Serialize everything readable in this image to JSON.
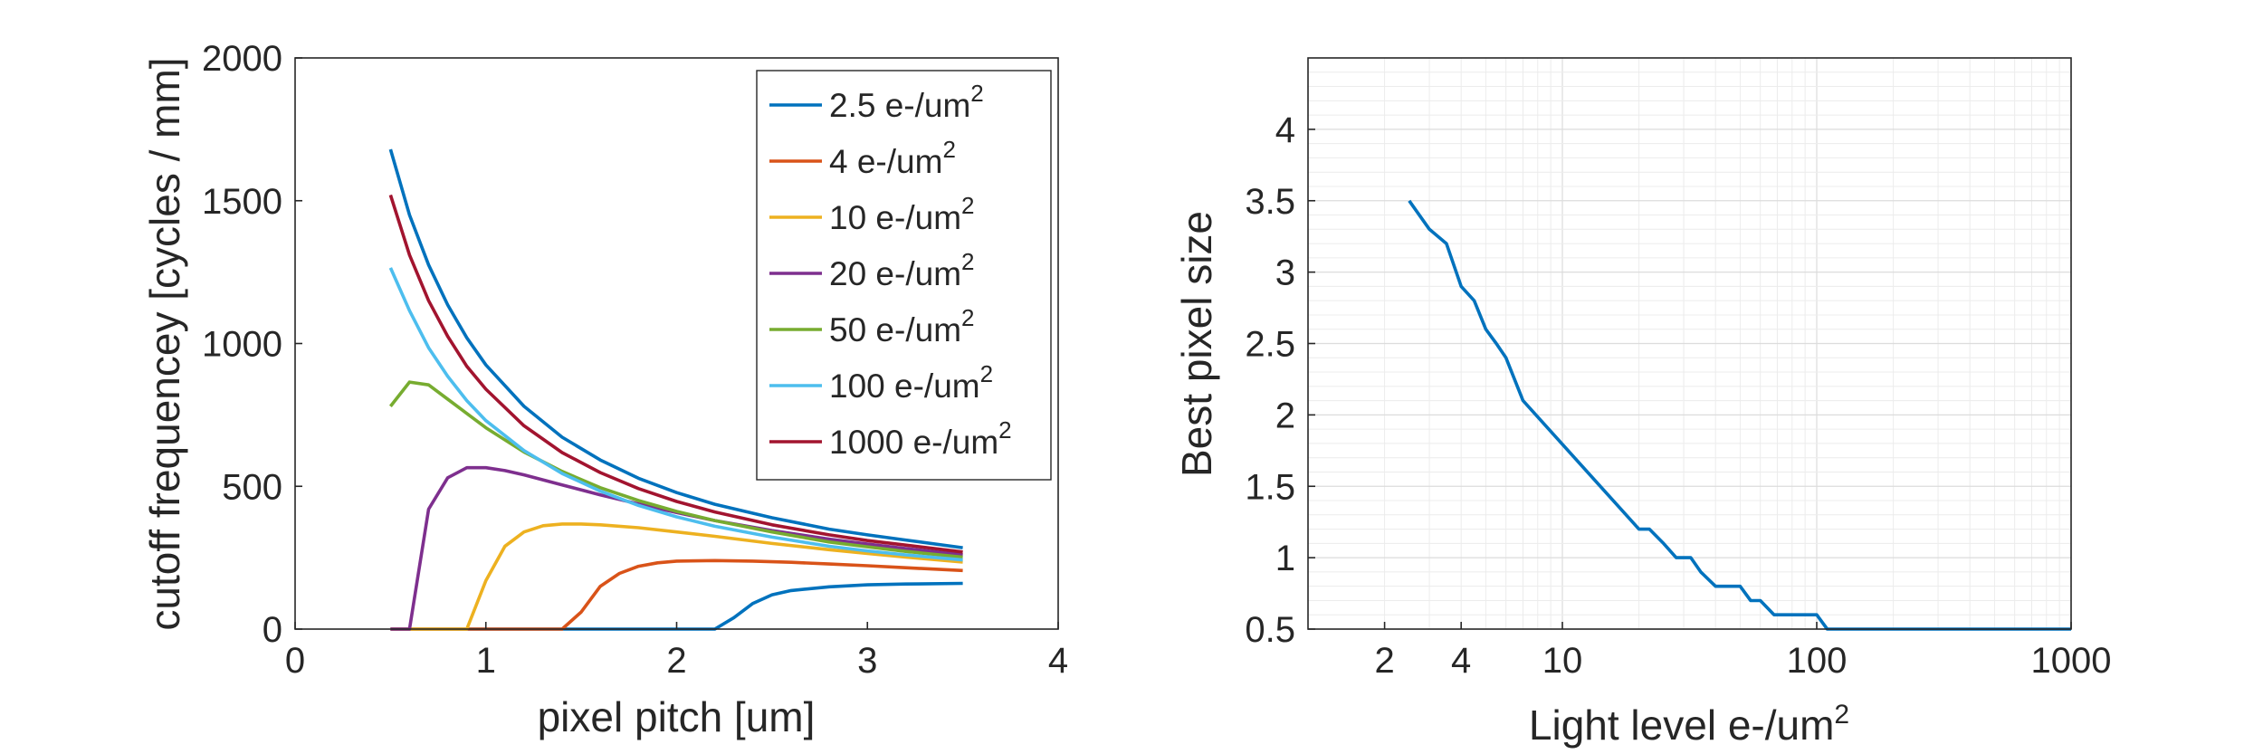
{
  "chart_data": [
    {
      "type": "line",
      "xlabel": "pixel pitch [um]",
      "ylabel": "cutoff frequencey [cycles / mm]",
      "xlim": [
        0,
        4
      ],
      "ylim": [
        0,
        2000
      ],
      "xticks": [
        "0",
        "1",
        "2",
        "3",
        "4"
      ],
      "yticks": [
        "0",
        "500",
        "1000",
        "1500",
        "2000"
      ],
      "grid": false,
      "legend_position": "top-right",
      "series": [
        {
          "name": "2.5 e-/um",
          "sup": "2",
          "color": "#0072BD",
          "x": [
            0.5,
            0.6,
            0.7,
            0.8,
            0.9,
            1.0,
            1.2,
            1.4,
            1.6,
            1.8,
            2.0,
            2.2,
            2.3,
            2.4,
            2.5,
            2.6,
            2.8,
            3.0,
            3.2,
            3.5
          ],
          "y": [
            0,
            0,
            0,
            0,
            0,
            0,
            0,
            0,
            0,
            0,
            0,
            0,
            40,
            90,
            120,
            135,
            148,
            155,
            158,
            160
          ]
        },
        {
          "name": "4 e-/um",
          "sup": "2",
          "color": "#D95319",
          "x": [
            0.5,
            0.8,
            1.0,
            1.2,
            1.4,
            1.5,
            1.6,
            1.7,
            1.8,
            1.9,
            2.0,
            2.2,
            2.4,
            2.6,
            2.8,
            3.0,
            3.2,
            3.5
          ],
          "y": [
            0,
            0,
            0,
            0,
            0,
            60,
            150,
            195,
            220,
            232,
            238,
            240,
            238,
            234,
            228,
            222,
            215,
            205
          ]
        },
        {
          "name": "10 e-/um",
          "sup": "2",
          "color": "#EDB120",
          "x": [
            0.5,
            0.7,
            0.9,
            1.0,
            1.1,
            1.2,
            1.3,
            1.4,
            1.5,
            1.6,
            1.8,
            2.0,
            2.2,
            2.5,
            2.8,
            3.0,
            3.2,
            3.5
          ],
          "y": [
            0,
            0,
            0,
            170,
            290,
            340,
            362,
            368,
            368,
            365,
            355,
            340,
            325,
            300,
            278,
            265,
            252,
            235
          ]
        },
        {
          "name": "20 e-/um",
          "sup": "2",
          "color": "#7E2F8E",
          "x": [
            0.5,
            0.6,
            0.7,
            0.8,
            0.9,
            1.0,
            1.1,
            1.2,
            1.4,
            1.6,
            1.8,
            2.0,
            2.2,
            2.5,
            2.8,
            3.0,
            3.2,
            3.5
          ],
          "y": [
            0,
            0,
            420,
            530,
            565,
            565,
            555,
            540,
            505,
            470,
            438,
            408,
            380,
            345,
            315,
            298,
            282,
            260
          ]
        },
        {
          "name": "50 e-/um",
          "sup": "2",
          "color": "#77AC30",
          "x": [
            0.5,
            0.6,
            0.7,
            0.8,
            0.9,
            1.0,
            1.2,
            1.4,
            1.6,
            1.8,
            2.0,
            2.2,
            2.5,
            2.8,
            3.0,
            3.2,
            3.5
          ],
          "y": [
            780,
            865,
            855,
            805,
            755,
            705,
            620,
            552,
            495,
            450,
            412,
            380,
            340,
            305,
            288,
            272,
            252
          ]
        },
        {
          "name": "100 e-/um",
          "sup": "2",
          "color": "#4DBEEE",
          "x": [
            0.5,
            0.6,
            0.7,
            0.8,
            0.9,
            1.0,
            1.2,
            1.4,
            1.6,
            1.8,
            2.0,
            2.2,
            2.5,
            2.8,
            3.0,
            3.2,
            3.5
          ],
          "y": [
            1265,
            1115,
            985,
            885,
            800,
            730,
            625,
            545,
            483,
            433,
            393,
            360,
            322,
            290,
            274,
            260,
            242
          ]
        },
        {
          "name": "1000 e-/um",
          "sup": "2",
          "color": "#A2142F",
          "x": [
            0.5,
            0.6,
            0.7,
            0.8,
            0.9,
            1.0,
            1.2,
            1.4,
            1.6,
            1.8,
            2.0,
            2.2,
            2.5,
            2.8,
            3.0,
            3.2,
            3.5
          ],
          "y": [
            1520,
            1310,
            1150,
            1025,
            920,
            840,
            712,
            618,
            548,
            492,
            447,
            410,
            365,
            330,
            310,
            294,
            270
          ]
        },
        {
          "name": "2.5 e-/um",
          "sup": "2",
          "color": "#0072BD",
          "legend": false,
          "x": [
            0.5,
            0.6,
            0.7,
            0.8,
            0.9,
            1.0,
            1.2,
            1.4,
            1.6,
            1.8,
            2.0,
            2.2,
            2.5,
            2.8,
            3.0,
            3.2,
            3.5
          ],
          "y": [
            1680,
            1450,
            1275,
            1135,
            1020,
            925,
            780,
            672,
            592,
            528,
            478,
            437,
            390,
            350,
            330,
            312,
            285
          ]
        }
      ]
    },
    {
      "type": "line",
      "xlabel": "Light level e-/um",
      "xlabel_sup": "2",
      "ylabel": "Best pixel size",
      "xscale": "log",
      "xlim": [
        1,
        1000
      ],
      "ylim": [
        0.5,
        4.5
      ],
      "xticks": [
        {
          "value": 2,
          "label": "2"
        },
        {
          "value": 4,
          "label": "4"
        },
        {
          "value": 10,
          "label": "10"
        },
        {
          "value": 100,
          "label": "100"
        },
        {
          "value": 1000,
          "label": "1000"
        }
      ],
      "yticks": [
        "0.5",
        "1",
        "1.5",
        "2",
        "2.5",
        "3",
        "3.5",
        "4"
      ],
      "grid": true,
      "series": [
        {
          "color": "#0072BD",
          "x": [
            2.5,
            3,
            3.5,
            4,
            4.5,
            5,
            5.5,
            6,
            7,
            20,
            22,
            25,
            28,
            32,
            35,
            40,
            45,
            50,
            55,
            60,
            68,
            75,
            85,
            100,
            110,
            150,
            200,
            300,
            500,
            700,
            1000
          ],
          "y": [
            3.5,
            3.3,
            3.2,
            2.9,
            2.8,
            2.6,
            2.5,
            2.4,
            2.1,
            1.2,
            1.2,
            1.1,
            1.0,
            1.0,
            0.9,
            0.8,
            0.8,
            0.8,
            0.7,
            0.7,
            0.6,
            0.6,
            0.6,
            0.6,
            0.5,
            0.5,
            0.5,
            0.5,
            0.5,
            0.5,
            0.5
          ]
        }
      ]
    }
  ]
}
